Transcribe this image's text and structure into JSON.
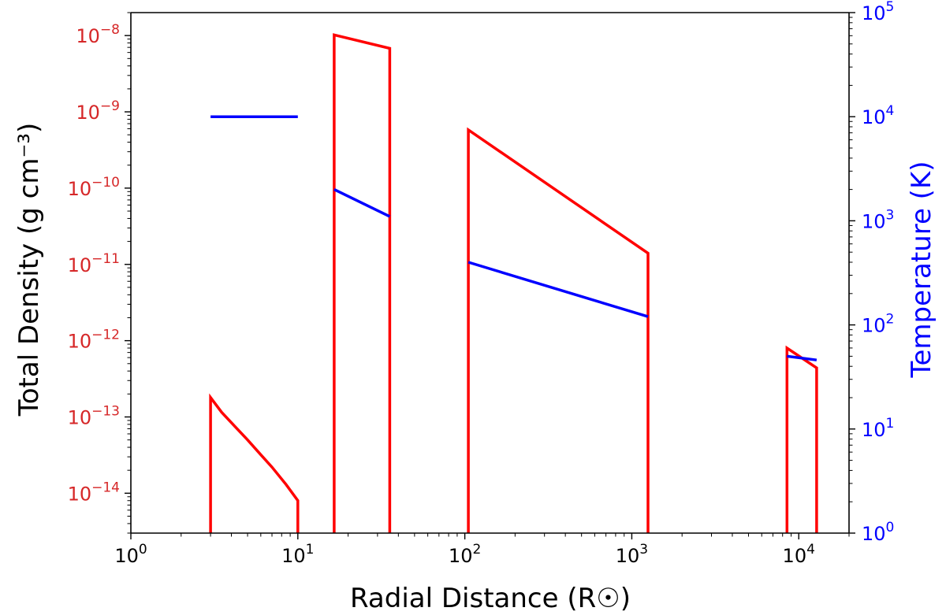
{
  "chart_data": {
    "type": "line",
    "xlabel": "Radial Distance (R☉)",
    "ylabel_left": "Total Density (g cm⁻³)",
    "ylabel_right": "Temperature (K)",
    "x_scale": "log",
    "y_left_scale": "log",
    "y_right_scale": "log",
    "xlim": [
      1,
      20000
    ],
    "ylim_left": [
      3e-15,
      2e-08
    ],
    "ylim_right": [
      1,
      100000
    ],
    "x_ticks": [
      {
        "value": 1,
        "base": "10",
        "exp": "0"
      },
      {
        "value": 10,
        "base": "10",
        "exp": "1"
      },
      {
        "value": 100,
        "base": "10",
        "exp": "2"
      },
      {
        "value": 1000,
        "base": "10",
        "exp": "3"
      },
      {
        "value": 10000,
        "base": "10",
        "exp": "4"
      }
    ],
    "y_left_ticks": [
      {
        "value": 1e-14,
        "base": "10",
        "exp": "−14"
      },
      {
        "value": 1e-13,
        "base": "10",
        "exp": "−13"
      },
      {
        "value": 1e-12,
        "base": "10",
        "exp": "−12"
      },
      {
        "value": 1e-11,
        "base": "10",
        "exp": "−11"
      },
      {
        "value": 1e-10,
        "base": "10",
        "exp": "−10"
      },
      {
        "value": 1e-09,
        "base": "10",
        "exp": "−9"
      },
      {
        "value": 1e-08,
        "base": "10",
        "exp": "−8"
      }
    ],
    "y_right_ticks": [
      {
        "value": 1,
        "base": "10",
        "exp": "0"
      },
      {
        "value": 10,
        "base": "10",
        "exp": "1"
      },
      {
        "value": 100,
        "base": "10",
        "exp": "2"
      },
      {
        "value": 1000,
        "base": "10",
        "exp": "3"
      },
      {
        "value": 10000,
        "base": "10",
        "exp": "4"
      },
      {
        "value": 100000,
        "base": "10",
        "exp": "5"
      }
    ],
    "series": [
      {
        "axis": "left",
        "color": "#ff0000",
        "segments": [
          [
            [
              3,
              1e-16
            ],
            [
              3,
              1.8e-13
            ],
            [
              3.5,
              1.15e-13
            ],
            [
              4.2,
              7.5e-14
            ],
            [
              5,
              5e-14
            ],
            [
              6,
              3.2e-14
            ],
            [
              7,
              2.2e-14
            ],
            [
              8.5,
              1.3e-14
            ],
            [
              10,
              8e-15
            ],
            [
              10,
              1e-16
            ]
          ],
          [
            [
              16.5,
              1e-16
            ],
            [
              16.5,
              1.02e-08
            ],
            [
              35.5,
              6.8e-09
            ],
            [
              35.5,
              1e-16
            ]
          ],
          [
            [
              105,
              1e-16
            ],
            [
              105,
              5.8e-10
            ],
            [
              1250,
              1.4e-11
            ],
            [
              1250,
              1e-16
            ]
          ],
          [
            [
              8500,
              1e-16
            ],
            [
              8500,
              8e-13
            ],
            [
              12800,
              4.4e-13
            ],
            [
              12800,
              1e-16
            ]
          ]
        ]
      },
      {
        "axis": "right",
        "color": "#0000ff",
        "segments": [
          [
            [
              3,
              10000
            ],
            [
              10,
              10000
            ]
          ],
          [
            [
              16.5,
              2000
            ],
            [
              35.5,
              1100
            ]
          ],
          [
            [
              105,
              400
            ],
            [
              1250,
              120
            ]
          ],
          [
            [
              8500,
              50
            ],
            [
              12800,
              46
            ]
          ]
        ]
      }
    ],
    "colors": {
      "density": "#ff0000",
      "temperature": "#0000ff",
      "axis": "#000000",
      "left_ticks": "#d62728"
    }
  }
}
